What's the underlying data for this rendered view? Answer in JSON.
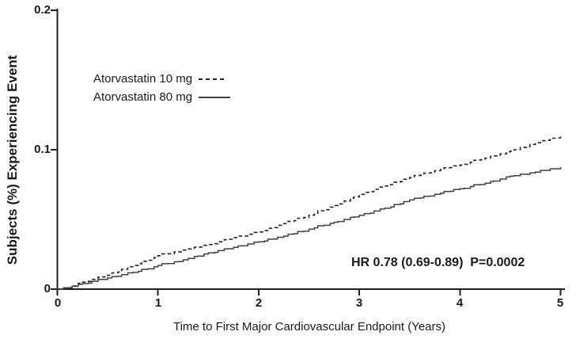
{
  "chart_data": {
    "type": "line",
    "subtype": "kaplan-meier-cumulative-incidence",
    "title": "",
    "xlabel": "Time to First Major Cardiovascular Endpoint (Years)",
    "ylabel": "Subjects (%) Experiencing Event",
    "xlim": [
      0,
      5
    ],
    "ylim": [
      0,
      0.2
    ],
    "x_ticks": [
      "0",
      "1",
      "2",
      "3",
      "4",
      "5"
    ],
    "x_tick_values": [
      0,
      1,
      2,
      3,
      4,
      5
    ],
    "y_ticks": [
      "0",
      "0.1",
      "0.2"
    ],
    "y_tick_values": [
      0,
      0.1,
      0.2
    ],
    "grid": false,
    "legend_position": "inside-upper-left",
    "annotation": "HR 0.78 (0.69-0.89)  P=0.0002",
    "axis_color": "#1f1f1f",
    "text_color": "#1a1a1a",
    "background_color": "#ffffff",
    "series": [
      {
        "name": "Atorvastatin 10 mg",
        "line_style": "dashed",
        "color": "#232323",
        "x": [
          0,
          0.1,
          0.25,
          0.5,
          0.75,
          1,
          1.25,
          1.5,
          1.75,
          2,
          2.25,
          2.5,
          2.75,
          3,
          3.25,
          3.5,
          3.75,
          4,
          4.25,
          4.5,
          4.75,
          5
        ],
        "values": [
          0,
          0.001,
          0.005,
          0.01,
          0.017,
          0.024,
          0.028,
          0.032,
          0.037,
          0.041,
          0.047,
          0.053,
          0.06,
          0.068,
          0.074,
          0.08,
          0.085,
          0.089,
          0.094,
          0.099,
          0.105,
          0.11
        ]
      },
      {
        "name": "Atorvastatin 80 mg",
        "line_style": "solid",
        "color": "#404040",
        "x": [
          0,
          0.1,
          0.25,
          0.5,
          0.75,
          1,
          1.25,
          1.5,
          1.75,
          2,
          2.25,
          2.5,
          2.75,
          3,
          3.25,
          3.5,
          3.75,
          4,
          4.25,
          4.5,
          4.75,
          5
        ],
        "values": [
          0,
          0.001,
          0.004,
          0.008,
          0.012,
          0.017,
          0.021,
          0.026,
          0.03,
          0.034,
          0.038,
          0.043,
          0.048,
          0.053,
          0.058,
          0.064,
          0.068,
          0.072,
          0.076,
          0.081,
          0.084,
          0.0875
        ]
      }
    ]
  }
}
